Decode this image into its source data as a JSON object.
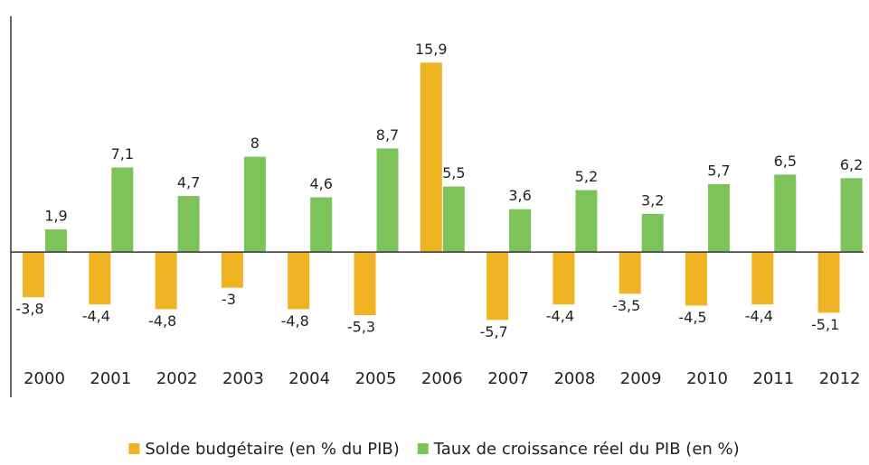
{
  "chart_data": {
    "type": "bar",
    "categories": [
      "2000",
      "2001",
      "2002",
      "2003",
      "2004",
      "2005",
      "2006",
      "2007",
      "2008",
      "2009",
      "2010",
      "2011",
      "2012"
    ],
    "ylim": [
      -12.2,
      19.8
    ],
    "series": [
      {
        "name": "Solde budgétaire (en % du PIB)",
        "color": "#f0b323",
        "values": [
          -3.8,
          -4.4,
          -4.8,
          -3,
          -4.8,
          -5.3,
          15.9,
          -5.7,
          -4.4,
          -3.5,
          -4.5,
          -4.4,
          -5.1
        ],
        "value_labels": [
          "-3,8",
          "-4,4",
          "-4,8",
          "-3",
          "-4,8",
          "-5,3",
          "15,9",
          "-5,7",
          "-4,4",
          "-3,5",
          "-4,5",
          "-4,4",
          "-5,1"
        ]
      },
      {
        "name": "Taux de croissance réel du PIB (en %)",
        "color": "#7cc35a",
        "values": [
          1.9,
          7.1,
          4.7,
          8,
          4.6,
          8.7,
          5.5,
          3.6,
          5.2,
          3.2,
          5.7,
          6.5,
          6.2
        ],
        "value_labels": [
          "1,9",
          "7,1",
          "4,7",
          "8",
          "4,6",
          "8,7",
          "5,5",
          "3,6",
          "5,2",
          "3,2",
          "5,7",
          "6,5",
          "6,2"
        ]
      }
    ]
  }
}
